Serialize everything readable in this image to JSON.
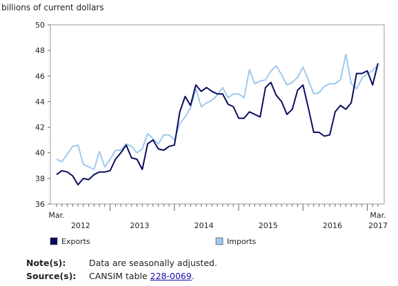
{
  "chart_data": {
    "type": "line",
    "ylabel": "billions of current dollars",
    "ylim": [
      36,
      50
    ],
    "yticks": [
      36,
      38,
      40,
      42,
      44,
      46,
      48,
      50
    ],
    "x_start": "Mar. 2012",
    "x_end": "Mar. 2017",
    "x_edge_labels": {
      "start": "Mar.",
      "end": "Mar."
    },
    "years": [
      "2012",
      "2013",
      "2014",
      "2015",
      "2016",
      "2017"
    ],
    "grid": false,
    "legend_position": "bottom",
    "series": [
      {
        "name": "Exports",
        "color": "#0a0a5e",
        "values": [
          38.3,
          38.6,
          38.5,
          38.2,
          37.5,
          38.0,
          37.9,
          38.3,
          38.5,
          38.5,
          38.6,
          39.5,
          40.0,
          40.6,
          39.6,
          39.5,
          38.7,
          40.7,
          41.0,
          40.3,
          40.2,
          40.5,
          40.6,
          43.2,
          44.4,
          43.7,
          45.3,
          44.8,
          45.1,
          44.8,
          44.6,
          44.6,
          43.8,
          43.6,
          42.7,
          42.7,
          43.2,
          43.0,
          42.8,
          45.1,
          45.5,
          44.5,
          44.0,
          43.0,
          43.4,
          44.9,
          45.3,
          43.5,
          41.6,
          41.6,
          41.3,
          41.4,
          43.2,
          43.7,
          43.4,
          43.9,
          46.2,
          46.2,
          46.4,
          45.3,
          47.0
        ]
      },
      {
        "name": "Imports",
        "color": "#9ec8ee",
        "values": [
          39.5,
          39.3,
          39.9,
          40.5,
          40.6,
          39.1,
          38.9,
          38.7,
          40.1,
          38.9,
          39.5,
          40.2,
          40.2,
          40.7,
          40.5,
          40.0,
          40.3,
          41.5,
          41.1,
          40.7,
          41.4,
          41.4,
          41.0,
          42.3,
          42.8,
          43.5,
          45.0,
          43.6,
          43.9,
          44.1,
          44.5,
          45.1,
          44.3,
          44.6,
          44.6,
          44.3,
          46.5,
          45.4,
          45.6,
          45.7,
          46.4,
          46.8,
          46.1,
          45.3,
          45.5,
          45.9,
          46.7,
          45.7,
          44.6,
          44.7,
          45.2,
          45.4,
          45.4,
          45.7,
          47.7,
          45.4,
          45.0,
          45.8,
          46.2,
          46.4,
          46.9
        ]
      }
    ]
  },
  "notes": {
    "note_label": "Note(s):",
    "note_text": "Data are seasonally adjusted.",
    "source_label": "Source(s):",
    "source_text": "CANSIM table ",
    "source_link": "228-0069",
    "source_end": "."
  }
}
